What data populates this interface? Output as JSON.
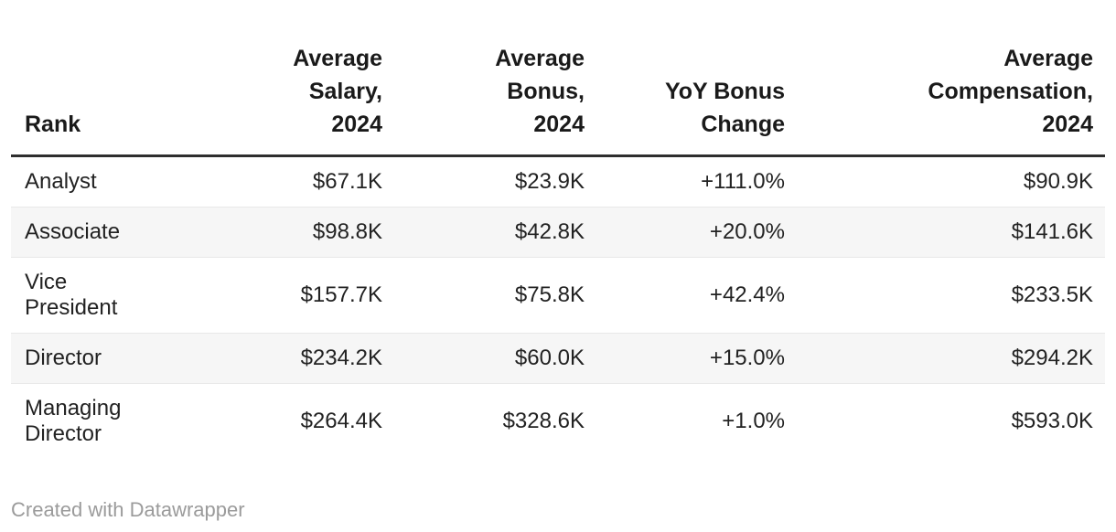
{
  "table": {
    "columns": [
      {
        "key": "rank",
        "label": "Rank",
        "lines": [
          "Rank"
        ],
        "align": "left"
      },
      {
        "key": "avg_salary_2024",
        "label": "Average Salary, 2024",
        "lines": [
          "Average",
          "Salary,",
          "2024"
        ],
        "align": "right"
      },
      {
        "key": "avg_bonus_2024",
        "label": "Average Bonus, 2024",
        "lines": [
          "Average",
          "Bonus,",
          "2024"
        ],
        "align": "right"
      },
      {
        "key": "yoy_bonus_change",
        "label": "YoY Bonus Change",
        "lines": [
          "YoY Bonus",
          "Change"
        ],
        "align": "right"
      },
      {
        "key": "avg_compensation_2024",
        "label": "Average Compensation, 2024",
        "lines": [
          "Average",
          "Compensation,",
          "2024"
        ],
        "align": "right"
      }
    ],
    "rows": [
      {
        "rank": "Analyst",
        "avg_salary_2024": "$67.1K",
        "avg_bonus_2024": "$23.9K",
        "yoy_bonus_change": "+111.0%",
        "avg_compensation_2024": "$90.9K"
      },
      {
        "rank": "Associate",
        "avg_salary_2024": "$98.8K",
        "avg_bonus_2024": "$42.8K",
        "yoy_bonus_change": "+20.0%",
        "avg_compensation_2024": "$141.6K"
      },
      {
        "rank": "Vice President",
        "avg_salary_2024": "$157.7K",
        "avg_bonus_2024": "$75.8K",
        "yoy_bonus_change": "+42.4%",
        "avg_compensation_2024": "$233.5K"
      },
      {
        "rank": "Director",
        "avg_salary_2024": "$234.2K",
        "avg_bonus_2024": "$60.0K",
        "yoy_bonus_change": "+15.0%",
        "avg_compensation_2024": "$294.2K"
      },
      {
        "rank": "Managing Director",
        "avg_salary_2024": "$264.4K",
        "avg_bonus_2024": "$328.6K",
        "yoy_bonus_change": "+1.0%",
        "avg_compensation_2024": "$593.0K"
      }
    ]
  },
  "chart_data": {
    "type": "table",
    "title": "",
    "columns": [
      "Rank",
      "Average Salary, 2024",
      "Average Bonus, 2024",
      "YoY Bonus Change",
      "Average Compensation, 2024"
    ],
    "rows": [
      [
        "Analyst",
        "$67.1K",
        "$23.9K",
        "+111.0%",
        "$90.9K"
      ],
      [
        "Associate",
        "$98.8K",
        "$42.8K",
        "+20.0%",
        "$141.6K"
      ],
      [
        "Vice President",
        "$157.7K",
        "$75.8K",
        "+42.4%",
        "$233.5K"
      ],
      [
        "Director",
        "$234.2K",
        "$60.0K",
        "+15.0%",
        "$294.2K"
      ],
      [
        "Managing Director",
        "$264.4K",
        "$328.6K",
        "+1.0%",
        "$593.0K"
      ]
    ],
    "numeric": {
      "categories": [
        "Analyst",
        "Associate",
        "Vice President",
        "Director",
        "Managing Director"
      ],
      "avg_salary_2024_thousands_usd": [
        67.1,
        98.8,
        157.7,
        234.2,
        264.4
      ],
      "avg_bonus_2024_thousands_usd": [
        23.9,
        42.8,
        75.8,
        60.0,
        328.6
      ],
      "yoy_bonus_change_percent": [
        111.0,
        20.0,
        42.4,
        15.0,
        1.0
      ],
      "avg_compensation_2024_thousands_usd": [
        90.9,
        141.6,
        233.5,
        294.2,
        593.0
      ]
    },
    "layout": {
      "striped_rows": true,
      "stripe_on": "even",
      "header_rule": true,
      "grid": "horizontal-only"
    }
  },
  "footer": {
    "attribution": "Created with Datawrapper"
  },
  "colors": {
    "background": "#ffffff",
    "body_text": "#222222",
    "header_text": "#1a1a1a",
    "header_rule": "#2e2e2e",
    "row_divider": "#e8e8e8",
    "stripe": "#f6f6f6",
    "footer_text": "#9b9b9b"
  }
}
